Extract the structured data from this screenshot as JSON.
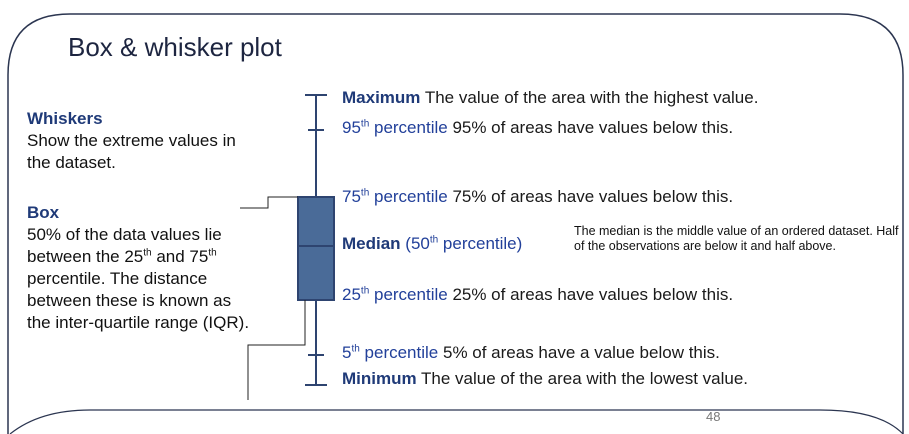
{
  "title": "Box & whisker plot",
  "sidebar": {
    "whiskers": {
      "heading": "Whiskers",
      "text": [
        {
          "text": "Show the extreme values in the dataset."
        }
      ]
    },
    "box": {
      "heading": "Box",
      "text": [
        {
          "text": "50% of the data values lie between the 25"
        },
        {
          "sup": "th"
        },
        {
          "text": " and 75"
        },
        {
          "sup": "th"
        },
        {
          "text": " percentile. The distance between these is known as the inter-quartile range (IQR)."
        }
      ]
    }
  },
  "labels": [
    {
      "term": [
        {
          "bold": "Maximum"
        }
      ],
      "description": "The value of the area with the highest value."
    },
    {
      "term": [
        {
          "text": "95"
        },
        {
          "sup": "th"
        },
        {
          "text": " percentile"
        }
      ],
      "description": "95% of areas have values below this."
    },
    {
      "term": [
        {
          "text": "75"
        },
        {
          "sup": "th"
        },
        {
          "text": " percentile"
        }
      ],
      "description": "75% of areas have values below this."
    },
    {
      "term": [
        {
          "bold": "Median"
        },
        {
          "text": " (50"
        },
        {
          "sup": "th"
        },
        {
          "text": " percentile)"
        }
      ],
      "description": ""
    },
    {
      "term": [
        {
          "text": "25"
        },
        {
          "sup": "th"
        },
        {
          "text": " percentile"
        }
      ],
      "description": "25% of areas have values below this."
    },
    {
      "term": [
        {
          "text": "5"
        },
        {
          "sup": "th"
        },
        {
          "text": " percentile"
        }
      ],
      "description": "5% of areas have a value below this."
    },
    {
      "term": [
        {
          "bold": "Minimum"
        }
      ],
      "description": "The value of the area with the lowest value."
    }
  ],
  "note": "The median is the middle value of an ordered dataset. Half of the observations are below it and half above.",
  "page_number": "48"
}
